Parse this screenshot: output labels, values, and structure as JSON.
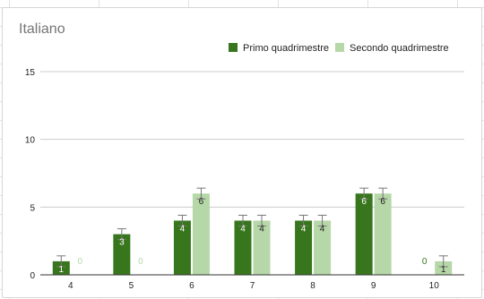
{
  "chart_data": {
    "type": "bar",
    "title": "Italiano",
    "xlabel": "",
    "ylabel": "",
    "categories": [
      "4",
      "5",
      "6",
      "7",
      "8",
      "9",
      "10"
    ],
    "series": [
      {
        "name": "Primo quadrimestre",
        "values": [
          1,
          3,
          4,
          4,
          4,
          6,
          0
        ],
        "color": "#38761d",
        "label_color_on_bar": "#ffffff",
        "label_color_zero": "#38761d"
      },
      {
        "name": "Secondo quadrimestre",
        "values": [
          0,
          0,
          6,
          4,
          4,
          6,
          1
        ],
        "color": "#b6d7a8",
        "label_color_on_bar": "#222222",
        "label_color_zero": "#b6d7a8"
      }
    ],
    "ylim": [
      0,
      15
    ],
    "yticks": [
      0,
      5,
      10,
      15
    ],
    "grid": true,
    "error_bars": true,
    "legend_position": "top-right",
    "colors": {
      "axis": "#333333",
      "grid": "#cccccc",
      "error_bar": "#777777"
    }
  }
}
